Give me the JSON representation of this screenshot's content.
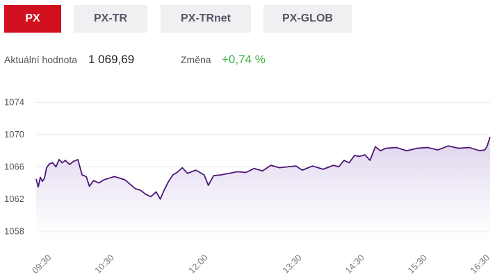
{
  "tabs": [
    {
      "label": "PX",
      "active": true
    },
    {
      "label": "PX-TR",
      "active": false
    },
    {
      "label": "PX-TRnet",
      "active": false
    },
    {
      "label": "PX-GLOB",
      "active": false
    }
  ],
  "stats": {
    "value_label": "Aktuální hodnota",
    "value": "1 069,69",
    "change_label": "Změna",
    "change": "+0,74 %",
    "change_color": "#3cb043"
  },
  "colors": {
    "accent": "#d0101f",
    "line": "#4b1577",
    "area_top": "#d9cdea",
    "area_bottom": "#ffffff",
    "grid": "#e6e6e6"
  },
  "chart_data": {
    "type": "area",
    "xlabel": "",
    "ylabel": "",
    "x_range": [
      "09:15",
      "16:30"
    ],
    "ylim": [
      1057,
      1075.5
    ],
    "y_ticks": [
      1058,
      1062,
      1066,
      1070,
      1074
    ],
    "x_ticks": [
      "09:30",
      "10:30",
      "12:00",
      "13:30",
      "14:30",
      "15:30",
      "16:30"
    ],
    "grid": true,
    "series": [
      {
        "name": "",
        "x": [
          "09:15",
          "09:17",
          "09:19",
          "09:21",
          "09:23",
          "09:25",
          "09:28",
          "09:31",
          "09:34",
          "09:37",
          "09:40",
          "09:43",
          "09:47",
          "09:51",
          "09:55",
          "09:59",
          "10:03",
          "10:06",
          "10:10",
          "10:15",
          "10:20",
          "10:25",
          "10:30",
          "10:40",
          "10:50",
          "10:55",
          "11:00",
          "11:05",
          "11:10",
          "11:14",
          "11:18",
          "11:22",
          "11:26",
          "11:30",
          "11:35",
          "11:40",
          "11:48",
          "11:56",
          "12:00",
          "12:05",
          "12:12",
          "12:20",
          "12:28",
          "12:36",
          "12:44",
          "12:52",
          "13:00",
          "13:08",
          "13:16",
          "13:24",
          "13:30",
          "13:40",
          "13:50",
          "14:00",
          "14:05",
          "14:10",
          "14:15",
          "14:20",
          "14:25",
          "14:30",
          "14:35",
          "14:40",
          "14:45",
          "14:50",
          "15:00",
          "15:10",
          "15:20",
          "15:30",
          "15:40",
          "15:50",
          "16:00",
          "16:10",
          "16:20",
          "16:25",
          "16:27",
          "16:30"
        ],
        "values": [
          1064.5,
          1063.5,
          1064.7,
          1064.2,
          1064.6,
          1065.9,
          1066.4,
          1066.5,
          1066.0,
          1066.9,
          1066.5,
          1066.8,
          1066.3,
          1066.7,
          1066.9,
          1065.0,
          1064.8,
          1063.6,
          1064.3,
          1064.0,
          1064.4,
          1064.6,
          1064.8,
          1064.4,
          1063.3,
          1063.1,
          1062.6,
          1062.3,
          1062.9,
          1062.0,
          1063.2,
          1064.2,
          1065.0,
          1065.3,
          1065.9,
          1065.2,
          1065.6,
          1065.0,
          1063.7,
          1064.9,
          1065.0,
          1065.2,
          1065.4,
          1065.3,
          1065.8,
          1065.5,
          1066.2,
          1065.9,
          1066.0,
          1066.1,
          1065.6,
          1066.1,
          1065.7,
          1066.2,
          1066.0,
          1066.8,
          1066.5,
          1067.4,
          1067.3,
          1067.5,
          1066.8,
          1068.5,
          1068.0,
          1068.3,
          1068.4,
          1068.0,
          1068.3,
          1068.4,
          1068.1,
          1068.6,
          1068.3,
          1068.4,
          1068.0,
          1068.1,
          1068.5,
          1069.7
        ]
      }
    ]
  }
}
